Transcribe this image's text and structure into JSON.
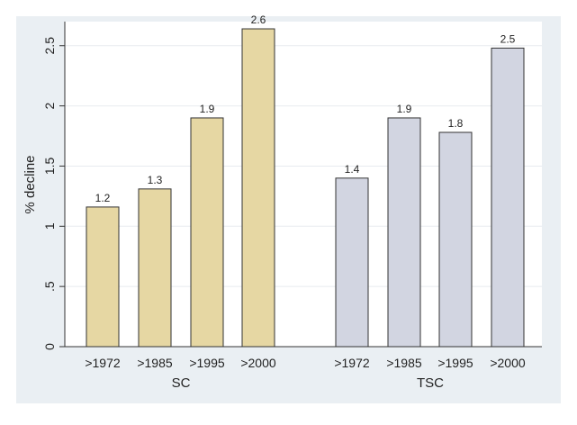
{
  "chart_data": {
    "type": "bar",
    "title": "",
    "ylabel": "% decline",
    "ylim": [
      0,
      2.7
    ],
    "yticks": [
      {
        "value": 0,
        "label": "0"
      },
      {
        "value": 0.5,
        "label": ".5"
      },
      {
        "value": 1,
        "label": "1"
      },
      {
        "value": 1.5,
        "label": "1.5"
      },
      {
        "value": 2,
        "label": "2"
      },
      {
        "value": 2.5,
        "label": "2.5"
      }
    ],
    "grid": true,
    "groups": [
      {
        "label": "SC",
        "color": "#e6d7a3",
        "categories": [
          ">1972",
          ">1985",
          ">1995",
          ">2000"
        ],
        "values": [
          1.16,
          1.31,
          1.9,
          2.64
        ],
        "data_labels": [
          "1.2",
          "1.3",
          "1.9",
          "2.6"
        ]
      },
      {
        "label": "TSC",
        "color": "#d2d5e1",
        "categories": [
          ">1972",
          ">1985",
          ">1995",
          ">2000"
        ],
        "values": [
          1.4,
          1.9,
          1.78,
          2.48
        ],
        "data_labels": [
          "1.4",
          "1.9",
          "1.8",
          "2.5"
        ]
      }
    ],
    "colors": {
      "plot_region_bg": "#eaeff3",
      "plot_area_bg": "#ffffff",
      "grid": "#e8ebef",
      "axis": "#333333",
      "bar_stroke": "#333333"
    }
  }
}
